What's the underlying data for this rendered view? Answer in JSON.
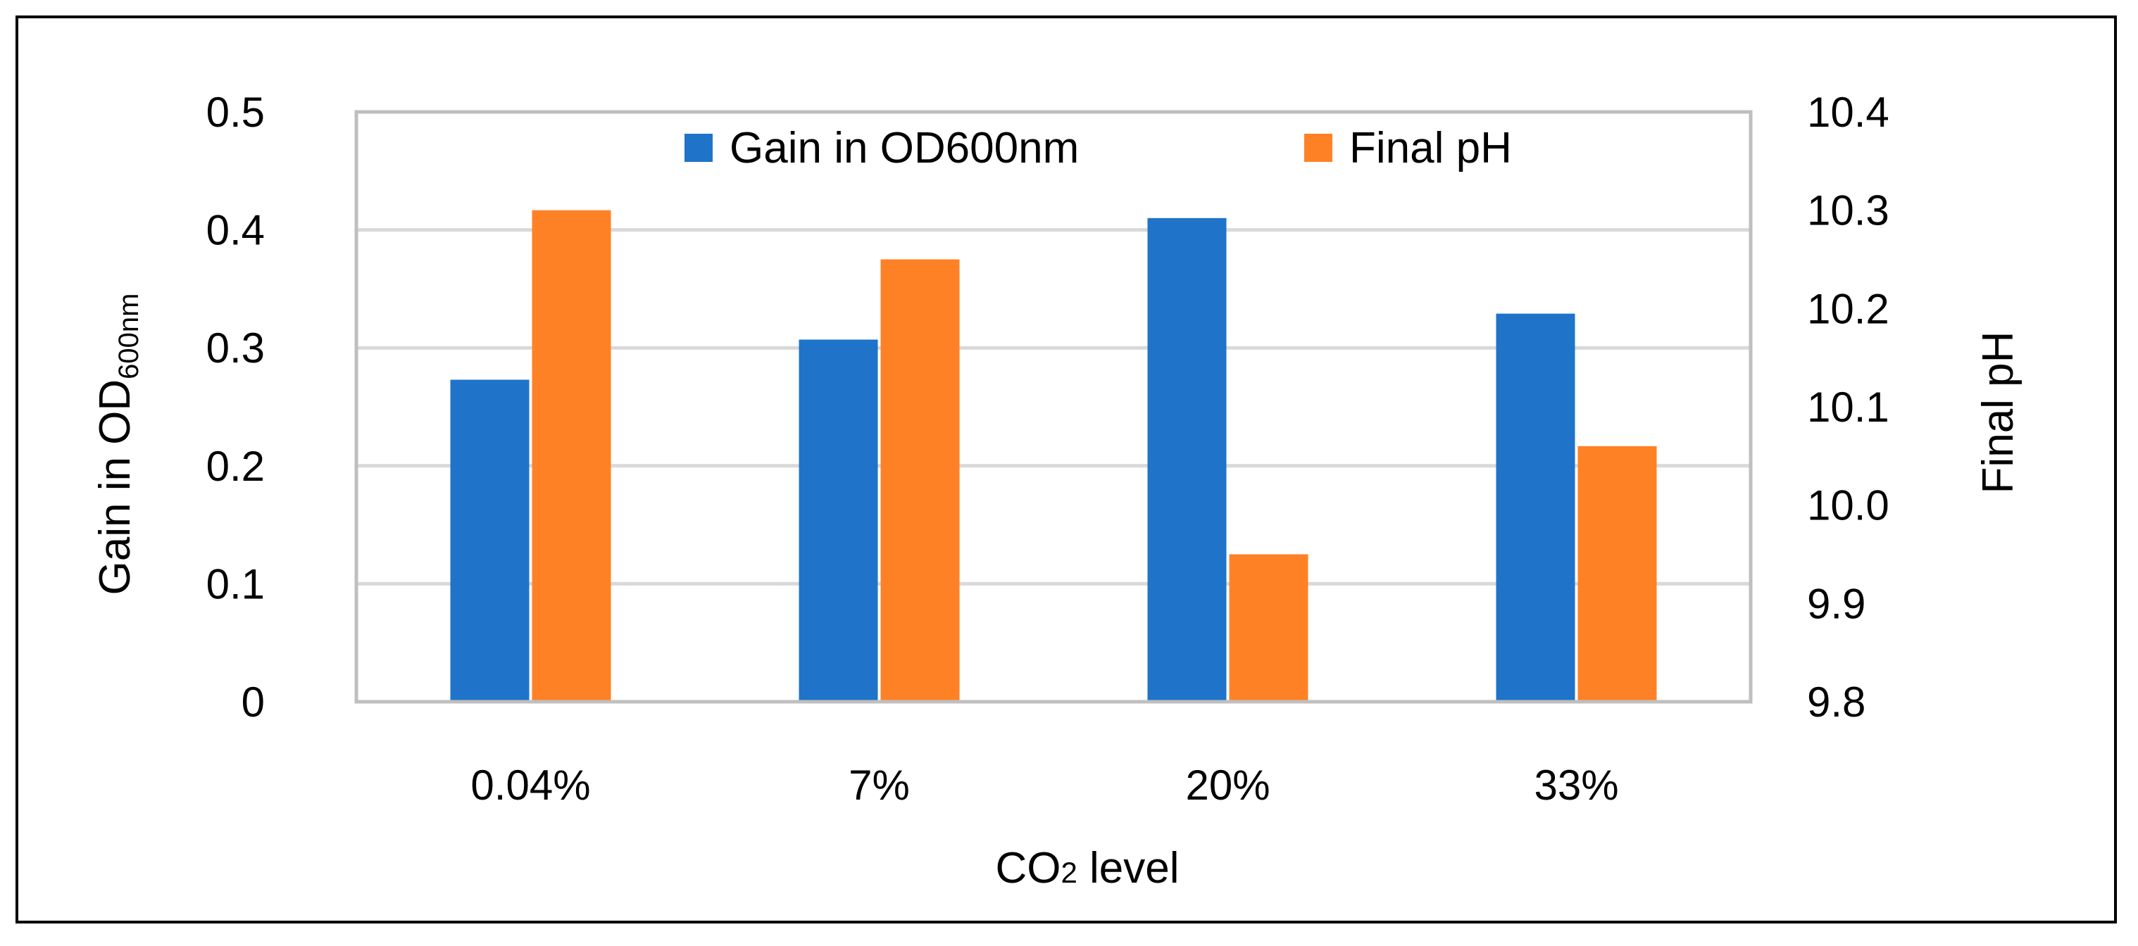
{
  "chart_data": {
    "type": "bar",
    "categories": [
      "0.04%",
      "7%",
      "20%",
      "33%"
    ],
    "series": [
      {
        "name": "Gain in OD600nm",
        "axis": "left",
        "color": "#1F74C9",
        "values": [
          0.273,
          0.307,
          0.41,
          0.329
        ]
      },
      {
        "name": "Final pH",
        "axis": "right",
        "color": "#FF8126",
        "values": [
          10.3,
          10.25,
          9.95,
          10.06
        ]
      }
    ],
    "left_axis": {
      "label_main": "Gain in OD",
      "label_sub": "600nm",
      "ylim": [
        0,
        0.5
      ],
      "ticks": [
        "0",
        "0.1",
        "0.2",
        "0.3",
        "0.4",
        "0.5"
      ]
    },
    "right_axis": {
      "label": "Final pH",
      "ylim": [
        9.8,
        10.4
      ],
      "ticks": [
        "9.8",
        "9.9",
        "10.0",
        "10.1",
        "10.2",
        "10.3",
        "10.4"
      ]
    },
    "xlabel_main": "CO",
    "xlabel_sub": "2",
    "xlabel_rest": " level",
    "grid": true,
    "legend_position": "top-center"
  }
}
